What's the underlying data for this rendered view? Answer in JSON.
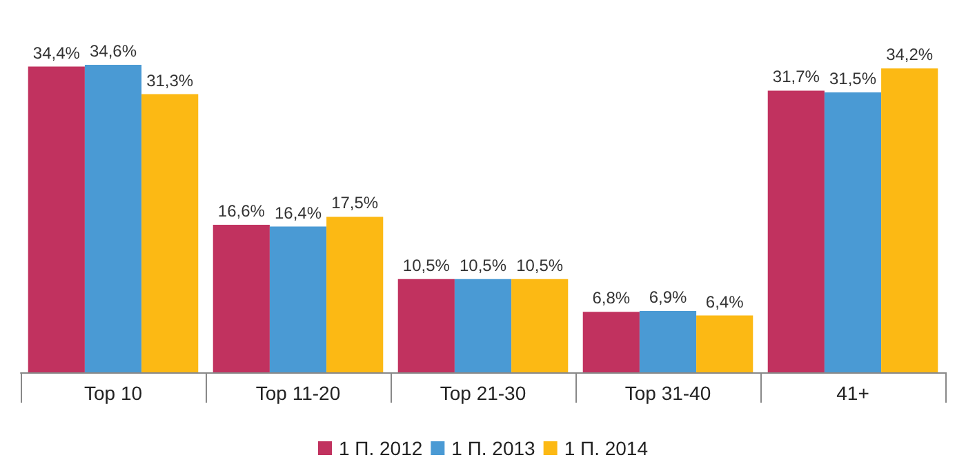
{
  "chart_data": {
    "type": "bar",
    "categories": [
      "Top 10",
      "Top 11-20",
      "Top 21-30",
      "Top 31-40",
      "41+"
    ],
    "series": [
      {
        "name": "1 П. 2012",
        "color": "#c1325f",
        "values": [
          34.4,
          16.6,
          10.5,
          6.8,
          31.7
        ],
        "value_labels": [
          "34,4%",
          "16,6%",
          "10,5%",
          "6,8%",
          "31,7%"
        ]
      },
      {
        "name": "1 П. 2013",
        "color": "#4a9ad4",
        "values": [
          34.6,
          16.4,
          10.5,
          6.9,
          31.5
        ],
        "value_labels": [
          "34,6%",
          "16,4%",
          "10,5%",
          "6,9%",
          "31,5%"
        ]
      },
      {
        "name": "1 П. 2014",
        "color": "#fcb914",
        "values": [
          31.3,
          17.5,
          10.5,
          6.4,
          34.2
        ],
        "value_labels": [
          "31,3%",
          "17,5%",
          "10,5%",
          "6,4%",
          "34,2%"
        ]
      }
    ],
    "legend": "bottom"
  }
}
